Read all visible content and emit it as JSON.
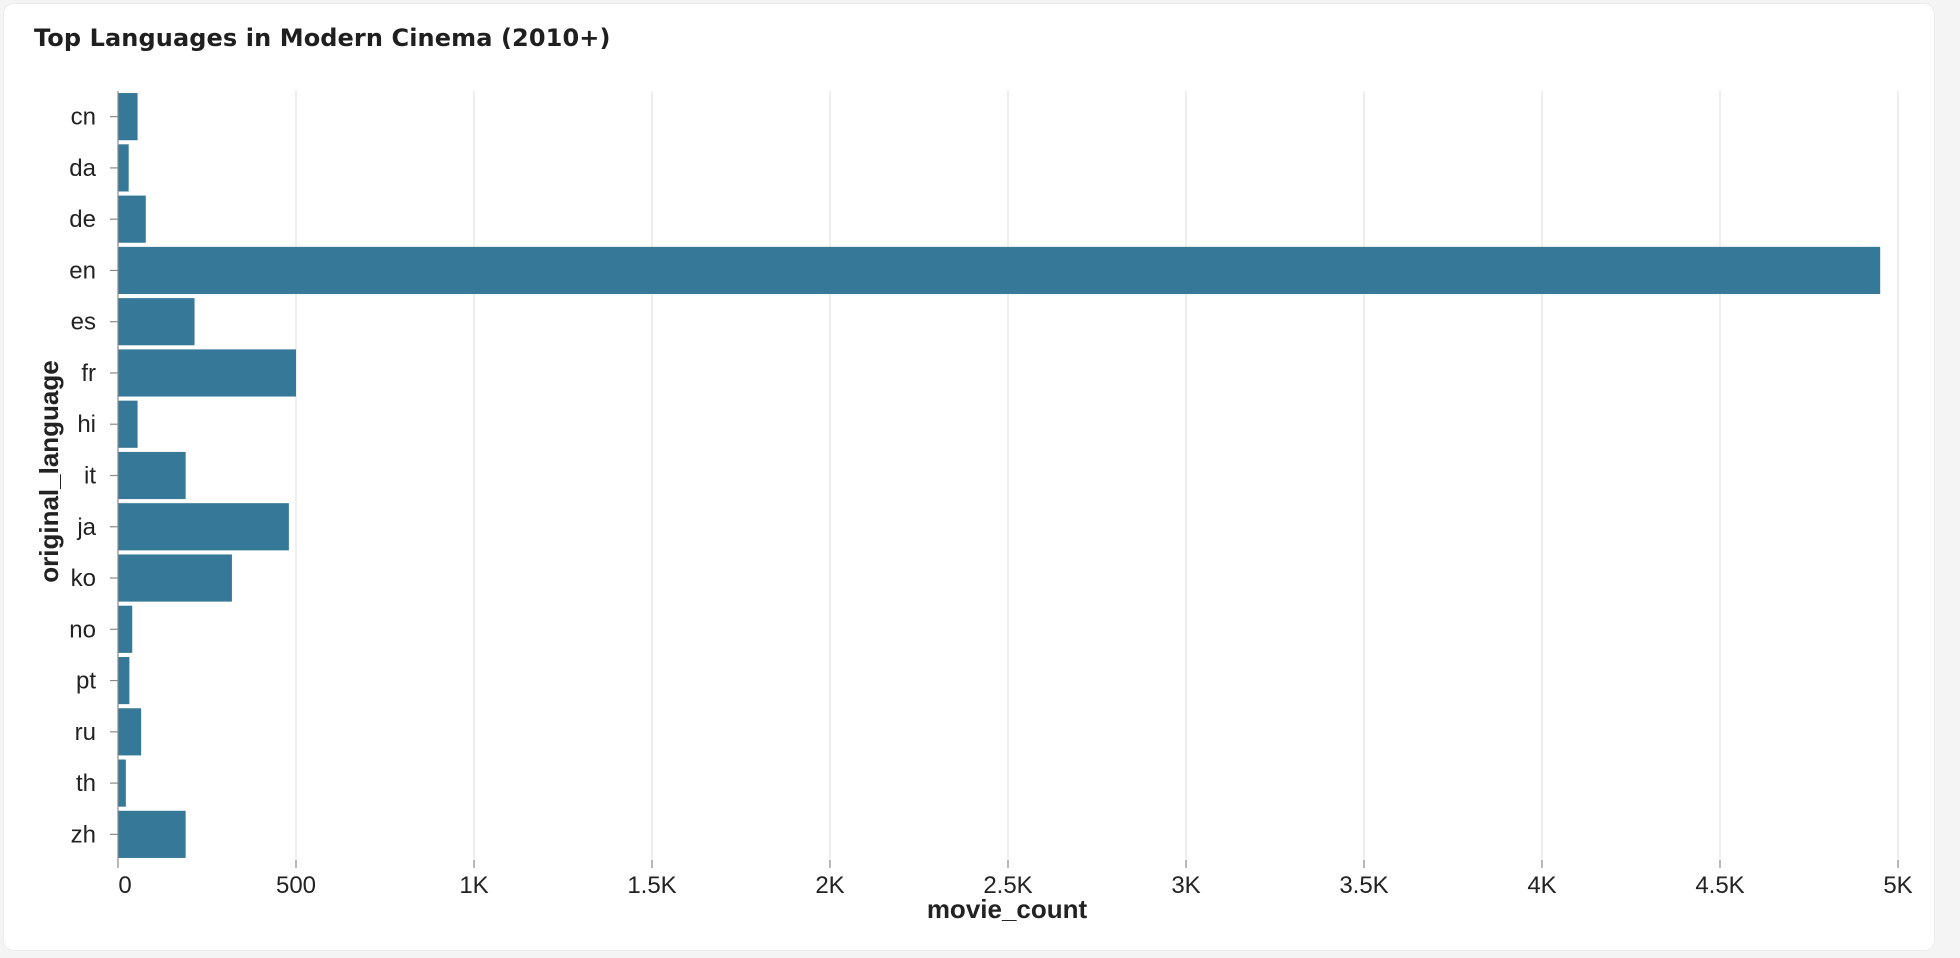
{
  "title": "Top Languages in Modern Cinema (2010+)",
  "colors": {
    "bar": "#367898",
    "grid": "#e2e2e2",
    "axis": "#8a8a8a",
    "text": "#222222"
  },
  "chart_data": {
    "type": "bar",
    "orientation": "horizontal",
    "title": "Top Languages in Modern Cinema (2010+)",
    "xlabel": "movie_count",
    "ylabel": "original_language",
    "categories": [
      "cn",
      "da",
      "de",
      "en",
      "es",
      "fr",
      "hi",
      "it",
      "ja",
      "ko",
      "no",
      "pt",
      "ru",
      "th",
      "zh"
    ],
    "values": [
      55,
      30,
      78,
      4950,
      215,
      500,
      55,
      190,
      480,
      320,
      40,
      32,
      65,
      22,
      190
    ],
    "xlim": [
      0,
      5000
    ],
    "xticks": [
      0,
      500,
      1000,
      1500,
      2000,
      2500,
      3000,
      3500,
      4000,
      4500,
      5000
    ],
    "xtick_labels": [
      "0",
      "500",
      "1K",
      "1.5K",
      "2K",
      "2.5K",
      "3K",
      "3.5K",
      "4K",
      "4.5K",
      "5K"
    ],
    "grid": "vertical",
    "legend": "none"
  }
}
